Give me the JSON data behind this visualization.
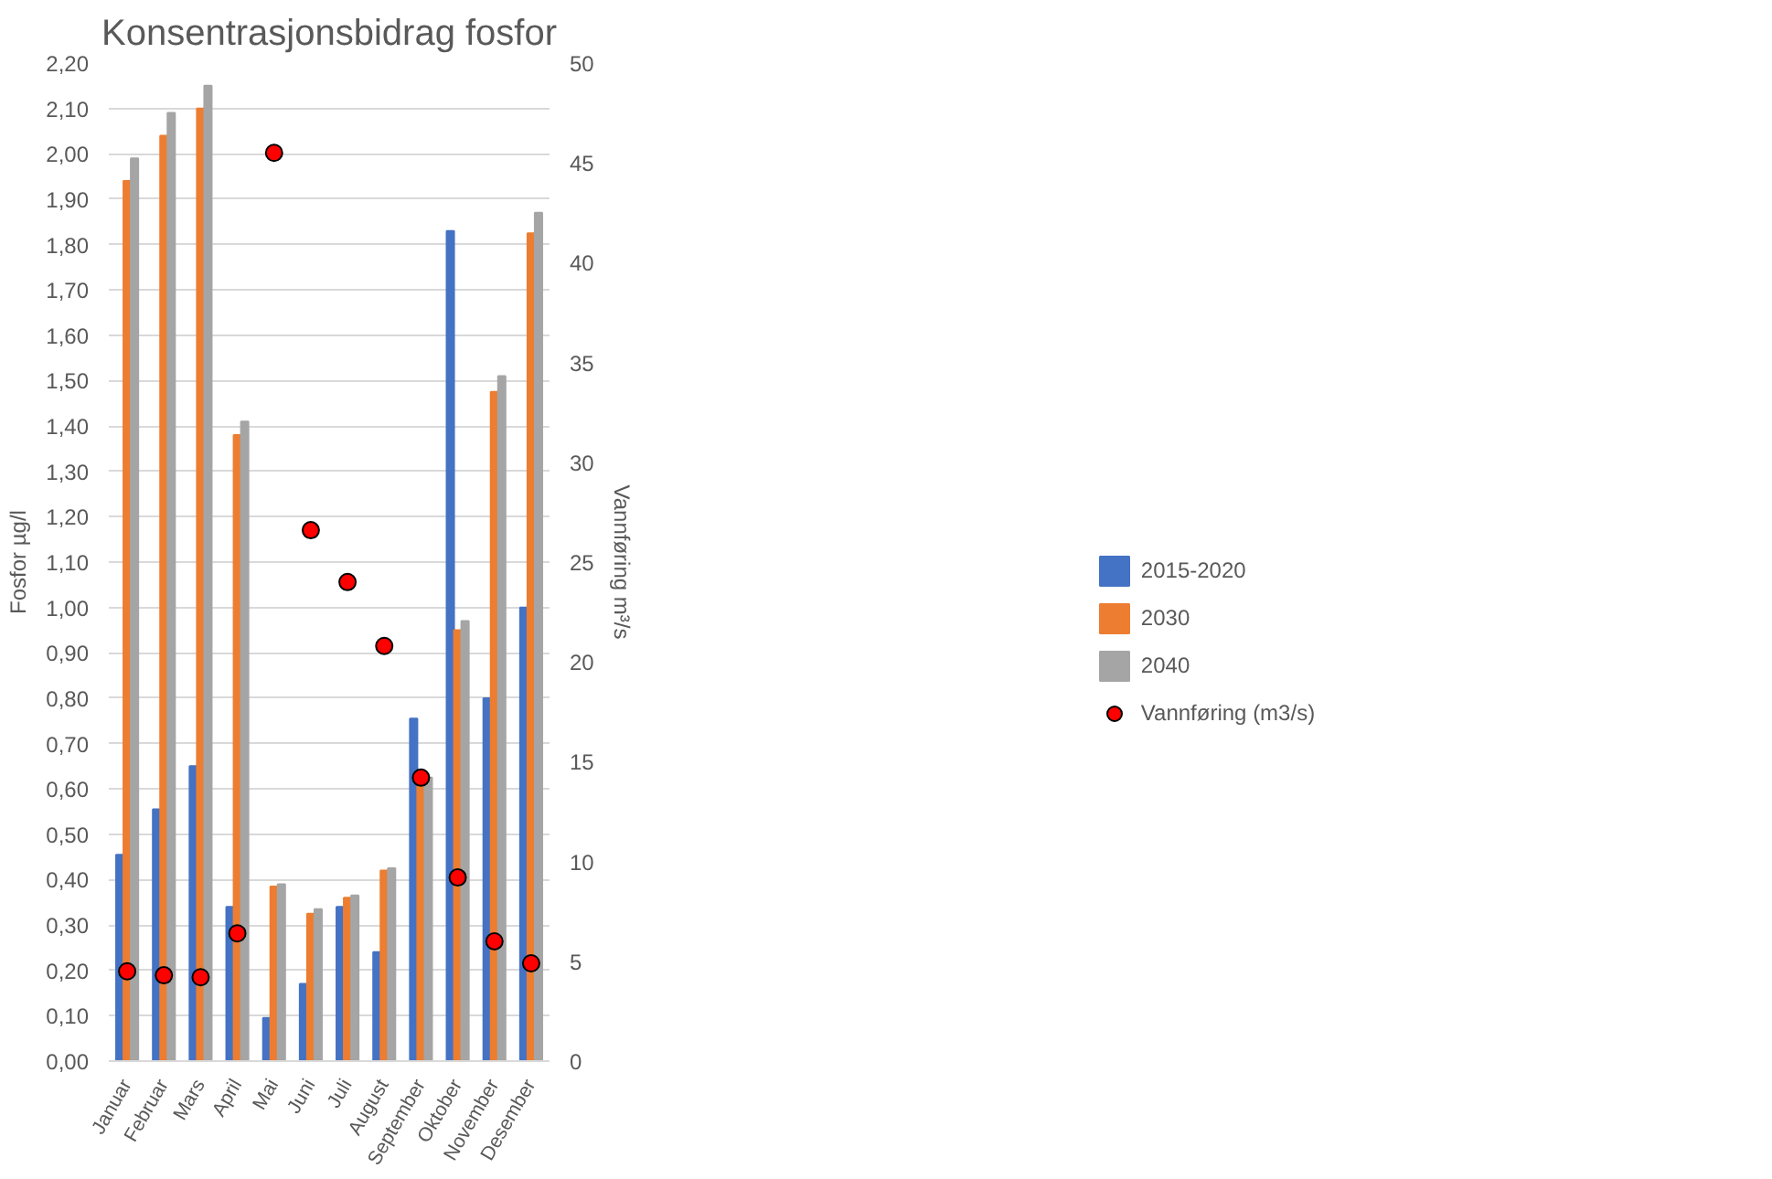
{
  "chart_data": {
    "type": "bar",
    "title": "Konsentrasjonsbidrag fosfor",
    "ylabel": "Fosfor µg/l",
    "y2label": "Vannføring m³/s",
    "categories": [
      "Januar",
      "Februar",
      "Mars",
      "April",
      "Mai",
      "Juni",
      "Juli",
      "August",
      "September",
      "Oktober",
      "November",
      "Desember"
    ],
    "series": [
      {
        "name": "2015-2020",
        "color": "#4472c4",
        "values": [
          0.455,
          0.555,
          0.65,
          0.34,
          0.095,
          0.17,
          0.34,
          0.24,
          0.755,
          1.83,
          0.8,
          1.0
        ]
      },
      {
        "name": "2030",
        "color": "#ed7d31",
        "values": [
          1.94,
          2.04,
          2.1,
          1.38,
          0.385,
          0.325,
          0.36,
          0.42,
          0.61,
          0.95,
          1.475,
          1.825
        ]
      },
      {
        "name": "2040",
        "color": "#a5a5a5",
        "values": [
          1.99,
          2.09,
          2.15,
          1.41,
          0.39,
          0.335,
          0.365,
          0.425,
          0.625,
          0.97,
          1.51,
          1.87
        ]
      },
      {
        "name": "Vannføring (m3/s)",
        "type": "scatter",
        "axis": "y2",
        "color": "#ff0000",
        "marker": "circle",
        "values": [
          4.5,
          4.3,
          4.2,
          6.4,
          45.5,
          26.6,
          24.0,
          20.8,
          14.2,
          9.2,
          6.0,
          4.9
        ]
      }
    ],
    "ylim": [
      0,
      2.2
    ],
    "yticks": [
      {
        "value": 0,
        "label": "0,00"
      },
      {
        "value": 0.1,
        "label": "0,10"
      },
      {
        "value": 0.2,
        "label": "0,20"
      },
      {
        "value": 0.3,
        "label": "0,30"
      },
      {
        "value": 0.4,
        "label": "0,40"
      },
      {
        "value": 0.5,
        "label": "0,50"
      },
      {
        "value": 0.6,
        "label": "0,60"
      },
      {
        "value": 0.7,
        "label": "0,70"
      },
      {
        "value": 0.8,
        "label": "0,80"
      },
      {
        "value": 0.9,
        "label": "0,90"
      },
      {
        "value": 1.0,
        "label": "1,00"
      },
      {
        "value": 1.1,
        "label": "1,10"
      },
      {
        "value": 1.2,
        "label": "1,20"
      },
      {
        "value": 1.3,
        "label": "1,30"
      },
      {
        "value": 1.4,
        "label": "1,40"
      },
      {
        "value": 1.5,
        "label": "1,50"
      },
      {
        "value": 1.6,
        "label": "1,60"
      },
      {
        "value": 1.7,
        "label": "1,70"
      },
      {
        "value": 1.8,
        "label": "1,80"
      },
      {
        "value": 1.9,
        "label": "1,90"
      },
      {
        "value": 2.0,
        "label": "2,00"
      },
      {
        "value": 2.1,
        "label": "2,10"
      },
      {
        "value": 2.2,
        "label": "2,20"
      }
    ],
    "y2lim": [
      0,
      50
    ],
    "y2ticks": [
      0,
      5,
      10,
      15,
      20,
      25,
      30,
      35,
      40,
      45,
      50
    ],
    "grid": "y",
    "legend": "right"
  }
}
